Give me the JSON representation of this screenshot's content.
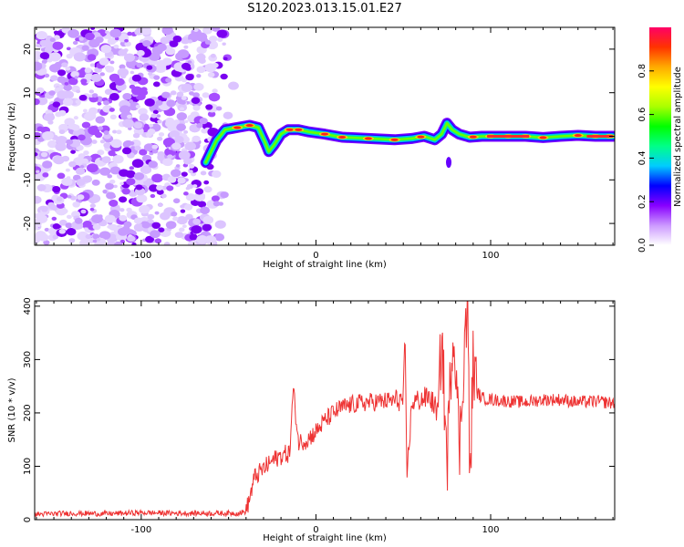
{
  "title": "S120.2023.013.15.01.E27",
  "chart_data": [
    {
      "type": "heatmap",
      "title": "S120.2023.013.15.01.E27",
      "xlabel": "Height of straight line (km)",
      "ylabel": "Frequency (Hz)",
      "xlim": [
        -161,
        171
      ],
      "ylim": [
        -25,
        25
      ],
      "x_ticks": [
        -100,
        0,
        100
      ],
      "y_ticks": [
        -20,
        -10,
        0,
        10,
        20
      ],
      "colorbar": {
        "label": "Normalized spectral amplitude",
        "ticks": [
          0.0,
          0.2,
          0.4,
          0.6,
          0.8
        ],
        "range": [
          0,
          1
        ],
        "colors": [
          "#ffffff",
          "#cc99ff",
          "#8800ff",
          "#0000ff",
          "#00ccff",
          "#00ff88",
          "#00ff00",
          "#aaff00",
          "#ffff00",
          "#ffaa00",
          "#ff3300",
          "#ff0066"
        ]
      },
      "noise_region_x": [
        -161,
        -58
      ],
      "ridge_x": [
        -63,
        -57,
        -52,
        -45,
        -38,
        -33,
        -29,
        -27,
        -24,
        -20,
        -16,
        -10,
        -4,
        5,
        15,
        30,
        45,
        55,
        62,
        68,
        72,
        75,
        78,
        82,
        88,
        95,
        105,
        120,
        130,
        140,
        150,
        160,
        170
      ],
      "ridge_freq": [
        -6.0,
        -1.0,
        1.5,
        2.0,
        2.5,
        2.0,
        -1.5,
        -3.5,
        -2.0,
        0.5,
        1.5,
        1.5,
        1.0,
        0.5,
        -0.2,
        -0.5,
        -0.8,
        -0.5,
        0.0,
        -0.8,
        0.5,
        3.0,
        1.5,
        0.5,
        -0.2,
        0.0,
        0.0,
        0.0,
        -0.3,
        0.0,
        0.2,
        0.0,
        0.0
      ],
      "ridge_peak_x": [
        -45,
        -38,
        -15,
        -10,
        5,
        15,
        30,
        45,
        60,
        90,
        100,
        110,
        120,
        130,
        150,
        160,
        168
      ]
    },
    {
      "type": "line",
      "xlabel": "Height of straight line (km)",
      "ylabel": "SNR (10 * v/v)",
      "xlim": [
        -161,
        171
      ],
      "ylim": [
        0,
        410
      ],
      "x_ticks": [
        -100,
        0,
        100
      ],
      "y_ticks": [
        0,
        100,
        200,
        300,
        400
      ],
      "color": "#ee3333",
      "x": [
        -161,
        -140,
        -120,
        -100,
        -80,
        -60,
        -45,
        -40,
        -38,
        -35,
        -30,
        -25,
        -20,
        -15,
        -13,
        -10,
        -5,
        0,
        5,
        10,
        15,
        20,
        25,
        30,
        40,
        50,
        51,
        52,
        55,
        60,
        65,
        70,
        72,
        75,
        78,
        80,
        82,
        85,
        87,
        88,
        90,
        92,
        95,
        100,
        110,
        120,
        130,
        140,
        150,
        160,
        171
      ],
      "y": [
        10,
        12,
        11,
        13,
        12,
        12,
        12,
        15,
        40,
        80,
        95,
        110,
        120,
        125,
        245,
        145,
        150,
        165,
        185,
        200,
        210,
        215,
        218,
        220,
        222,
        225,
        340,
        80,
        220,
        225,
        230,
        200,
        350,
        100,
        345,
        320,
        120,
        330,
        410,
        50,
        300,
        240,
        228,
        225,
        222,
        220,
        225,
        225,
        220,
        222,
        218
      ]
    }
  ]
}
